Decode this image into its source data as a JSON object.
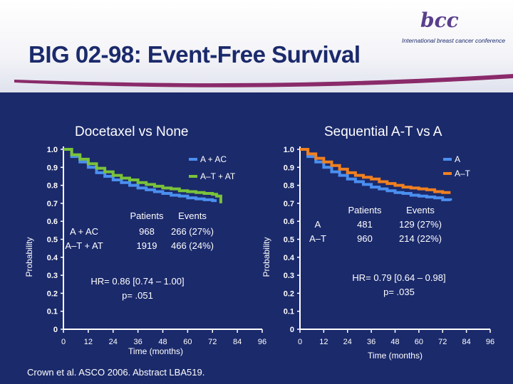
{
  "slide": {
    "title": "BIG 02-98: Event-Free Survival",
    "logo_text": "bcc",
    "logo_subtitle": "International breast cancer conference",
    "footer": "Crown et al. ASCO 2006. Abstract LBA519.",
    "colors": {
      "background": "#1b2a6b",
      "title": "#1b2a6b",
      "swoosh": "#8a2a6a"
    }
  },
  "chart_data": [
    {
      "type": "line",
      "title": "Docetaxel vs None",
      "xlabel": "Time (months)",
      "ylabel": "Probability",
      "xlim": [
        0,
        96
      ],
      "ylim": [
        0,
        1.0
      ],
      "x_ticks": [
        0,
        12,
        24,
        36,
        48,
        60,
        72,
        84,
        96
      ],
      "y_ticks": [
        "0",
        "0.1",
        "0.2",
        "0.3",
        "0.4",
        "0.5",
        "0.6",
        "0.7",
        "0.8",
        "0.9",
        "1.0"
      ],
      "legend": [
        "A + AC",
        "A–T + AT"
      ],
      "legend_position": "top-right",
      "series": [
        {
          "name": "A + AC",
          "color": "#4a8ff0",
          "x": [
            0,
            4,
            8,
            12,
            16,
            20,
            24,
            28,
            32,
            36,
            40,
            44,
            48,
            52,
            56,
            60,
            64,
            68,
            72,
            74
          ],
          "values": [
            1.0,
            0.96,
            0.93,
            0.9,
            0.87,
            0.85,
            0.83,
            0.815,
            0.8,
            0.785,
            0.775,
            0.765,
            0.755,
            0.745,
            0.74,
            0.73,
            0.725,
            0.72,
            0.715,
            0.715
          ]
        },
        {
          "name": "A–T + AT",
          "color": "#7ac23a",
          "x": [
            0,
            4,
            8,
            12,
            16,
            20,
            24,
            28,
            32,
            36,
            40,
            44,
            48,
            52,
            56,
            60,
            64,
            68,
            72,
            74,
            76
          ],
          "values": [
            1.0,
            0.97,
            0.945,
            0.92,
            0.895,
            0.875,
            0.855,
            0.84,
            0.83,
            0.815,
            0.805,
            0.795,
            0.785,
            0.78,
            0.77,
            0.765,
            0.76,
            0.755,
            0.75,
            0.74,
            0.7
          ]
        }
      ],
      "table": {
        "headers": [
          "Patients",
          "Events"
        ],
        "rows": [
          {
            "label": "A + AC",
            "patients": "968",
            "events": "266 (27%)"
          },
          {
            "label": "A–T + AT",
            "patients": "1919",
            "events": "466 (24%)"
          }
        ]
      },
      "annotations": [
        "HR= 0.86 [0.74 – 1.00]",
        "p= .051"
      ]
    },
    {
      "type": "line",
      "title": "Sequential A-T vs A",
      "xlabel": "Time (months)",
      "ylabel": "Probability",
      "xlim": [
        0,
        96
      ],
      "ylim": [
        0,
        1.0
      ],
      "x_ticks": [
        0,
        12,
        24,
        36,
        48,
        60,
        72,
        84,
        96
      ],
      "y_ticks": [
        "0",
        "0.1",
        "0.2",
        "0.3",
        "0.4",
        "0.5",
        "0.6",
        "0.7",
        "0.8",
        "0.9",
        "1.0"
      ],
      "legend": [
        "A",
        "A–T"
      ],
      "legend_position": "top-right",
      "series": [
        {
          "name": "A",
          "color": "#4a8ff0",
          "x": [
            0,
            4,
            8,
            12,
            16,
            20,
            24,
            28,
            32,
            36,
            40,
            44,
            48,
            52,
            56,
            60,
            64,
            68,
            72,
            76
          ],
          "values": [
            1.0,
            0.96,
            0.93,
            0.9,
            0.875,
            0.855,
            0.835,
            0.82,
            0.805,
            0.79,
            0.78,
            0.77,
            0.76,
            0.755,
            0.745,
            0.74,
            0.735,
            0.73,
            0.72,
            0.715
          ]
        },
        {
          "name": "A–T",
          "color": "#f08020",
          "x": [
            0,
            4,
            8,
            12,
            16,
            20,
            24,
            28,
            32,
            36,
            40,
            44,
            48,
            52,
            56,
            60,
            64,
            68,
            72,
            76
          ],
          "values": [
            1.0,
            0.975,
            0.95,
            0.93,
            0.91,
            0.89,
            0.87,
            0.855,
            0.845,
            0.835,
            0.82,
            0.81,
            0.8,
            0.79,
            0.785,
            0.78,
            0.775,
            0.765,
            0.76,
            0.76
          ]
        }
      ],
      "table": {
        "headers": [
          "Patients",
          "Events"
        ],
        "rows": [
          {
            "label": "A",
            "patients": "481",
            "events": "129 (27%)"
          },
          {
            "label": "A–T",
            "patients": "960",
            "events": "214 (22%)"
          }
        ]
      },
      "annotations": [
        "HR= 0.79 [0.64 – 0.98]",
        "p= .035"
      ]
    }
  ]
}
